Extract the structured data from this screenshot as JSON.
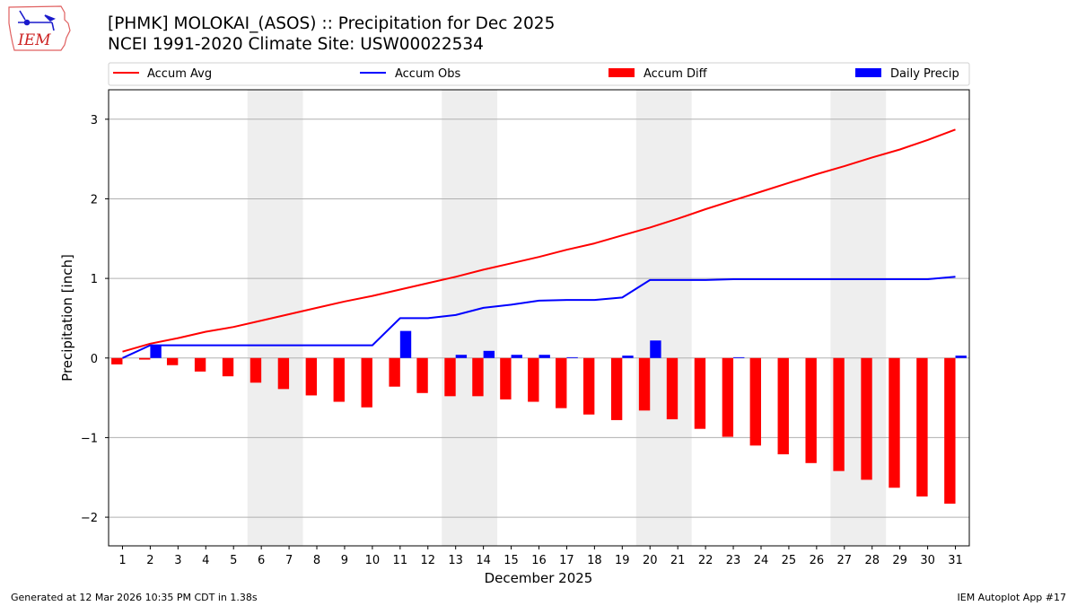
{
  "header": {
    "title_line1": "[PHMK] MOLOKAI_(ASOS) :: Precipitation for Dec 2025",
    "title_line2": "NCEI 1991-2020 Climate Site: USW00022534",
    "logo_text": "IEM"
  },
  "footer": {
    "generated": "Generated at 12 Mar 2026 10:35 PM CDT in 1.38s",
    "app": "IEM Autoplot App #17"
  },
  "colors": {
    "accum_avg": "#ff0000",
    "accum_obs": "#0000ff",
    "accum_diff": "#ff0000",
    "daily_precip": "#0000ff",
    "weekend_shade": "#eeeeee",
    "grid": "#b0b0b0"
  },
  "chart_data": {
    "type": "bar",
    "title": "[PHMK] MOLOKAI_(ASOS) :: Precipitation for Dec 2025",
    "subtitle": "NCEI 1991-2020 Climate Site: USW00022534",
    "xlabel": "December 2025",
    "ylabel": "Precipitation [inch]",
    "xlim": [
      0.5,
      31.5
    ],
    "ylim": [
      -2.36,
      3.37
    ],
    "yticks": [
      -2,
      -1,
      0,
      1,
      2,
      3
    ],
    "ytick_labels": [
      "−2",
      "−1",
      "0",
      "1",
      "2",
      "3"
    ],
    "grid": "y",
    "legend_placement": "top (above plot, 4 columns)",
    "legend": [
      "Accum Avg",
      "Accum Obs",
      "Accum Diff",
      "Daily Precip"
    ],
    "weekend_shading": [
      [
        5.5,
        7.5
      ],
      [
        12.5,
        14.5
      ],
      [
        19.5,
        21.5
      ],
      [
        26.5,
        28.5
      ]
    ],
    "x": [
      1,
      2,
      3,
      4,
      5,
      6,
      7,
      8,
      9,
      10,
      11,
      12,
      13,
      14,
      15,
      16,
      17,
      18,
      19,
      20,
      21,
      22,
      23,
      24,
      25,
      26,
      27,
      28,
      29,
      30,
      31
    ],
    "series": [
      {
        "name": "Accum Avg",
        "type": "line",
        "values": [
          0.08,
          0.18,
          0.25,
          0.33,
          0.39,
          0.47,
          0.55,
          0.63,
          0.71,
          0.78,
          0.86,
          0.94,
          1.02,
          1.11,
          1.19,
          1.27,
          1.36,
          1.44,
          1.54,
          1.64,
          1.75,
          1.87,
          1.98,
          2.09,
          2.2,
          2.31,
          2.41,
          2.52,
          2.62,
          2.74,
          2.87
        ]
      },
      {
        "name": "Accum Obs",
        "type": "line",
        "values": [
          0.0,
          0.16,
          0.16,
          0.16,
          0.16,
          0.16,
          0.16,
          0.16,
          0.16,
          0.16,
          0.5,
          0.5,
          0.54,
          0.63,
          0.67,
          0.72,
          0.73,
          0.73,
          0.76,
          0.98,
          0.98,
          0.98,
          0.99,
          0.99,
          0.99,
          0.99,
          0.99,
          0.99,
          0.99,
          0.99,
          1.02
        ]
      },
      {
        "name": "Accum Diff",
        "type": "bar",
        "values": [
          -0.08,
          -0.02,
          -0.09,
          -0.17,
          -0.23,
          -0.31,
          -0.39,
          -0.47,
          -0.55,
          -0.62,
          -0.36,
          -0.44,
          -0.48,
          -0.48,
          -0.52,
          -0.55,
          -0.63,
          -0.71,
          -0.78,
          -0.66,
          -0.77,
          -0.89,
          -0.99,
          -1.1,
          -1.21,
          -1.32,
          -1.42,
          -1.53,
          -1.63,
          -1.74,
          -1.83
        ]
      },
      {
        "name": "Daily Precip",
        "type": "bar",
        "values": [
          0,
          0.16,
          0,
          0,
          0,
          0,
          0,
          0,
          0,
          0,
          0.34,
          0,
          0.04,
          0.09,
          0.04,
          0.04,
          0.01,
          0,
          0.03,
          0.22,
          0,
          0,
          0.01,
          0,
          0,
          0,
          0,
          0,
          0,
          0,
          0.03
        ]
      }
    ]
  }
}
